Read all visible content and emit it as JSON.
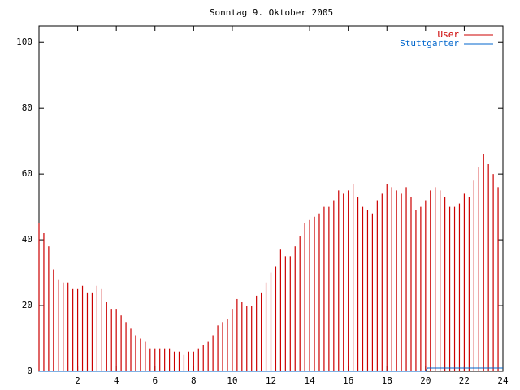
{
  "chart_data": {
    "type": "impulse",
    "title": "Sonntag 9. Oktober 2005",
    "xlim": [
      0,
      24
    ],
    "xticks": [
      2,
      4,
      6,
      8,
      10,
      12,
      14,
      16,
      18,
      20,
      22,
      24
    ],
    "ylim": [
      0,
      105
    ],
    "yticks": [
      0,
      20,
      40,
      60,
      80,
      100
    ],
    "legend": "top-right",
    "series": [
      {
        "name": "User",
        "color": "#cc0000",
        "style": "impulses",
        "x": [
          0,
          0.25,
          0.5,
          0.75,
          1,
          1.25,
          1.5,
          1.75,
          2,
          2.25,
          2.5,
          2.75,
          3,
          3.25,
          3.5,
          3.75,
          4,
          4.25,
          4.5,
          4.75,
          5,
          5.25,
          5.5,
          5.75,
          6,
          6.25,
          6.5,
          6.75,
          7,
          7.25,
          7.5,
          7.75,
          8,
          8.25,
          8.5,
          8.75,
          9,
          9.25,
          9.5,
          9.75,
          10,
          10.25,
          10.5,
          10.75,
          11,
          11.25,
          11.5,
          11.75,
          12,
          12.25,
          12.5,
          12.75,
          13,
          13.25,
          13.5,
          13.75,
          14,
          14.25,
          14.5,
          14.75,
          15,
          15.25,
          15.5,
          15.75,
          16,
          16.25,
          16.5,
          16.75,
          17,
          17.25,
          17.5,
          17.75,
          18,
          18.25,
          18.5,
          18.75,
          19,
          19.25,
          19.5,
          19.75,
          20,
          20.25,
          20.5,
          20.75,
          21,
          21.25,
          21.5,
          21.75,
          22,
          22.25,
          22.5,
          22.75,
          23,
          23.25,
          23.5,
          23.75
        ],
        "values": [
          45,
          42,
          38,
          31,
          28,
          27,
          27,
          25,
          25,
          26,
          24,
          24,
          26,
          25,
          21,
          19,
          19,
          17,
          15,
          13,
          11,
          10,
          9,
          7,
          7,
          7,
          7,
          7,
          6,
          6,
          5,
          6,
          6,
          7,
          8,
          9,
          11,
          14,
          15,
          16,
          19,
          22,
          21,
          20,
          20,
          23,
          24,
          27,
          30,
          32,
          37,
          35,
          35,
          38,
          41,
          45,
          46,
          47,
          48,
          50,
          50,
          52,
          55,
          54,
          55,
          57,
          53,
          50,
          49,
          48,
          52,
          54,
          57,
          56,
          55,
          54,
          56,
          53,
          49,
          50,
          52,
          55,
          56,
          55,
          53,
          50,
          50,
          51,
          54,
          53,
          58,
          62,
          66,
          63,
          60,
          56
        ]
      },
      {
        "name": "Stuttgarter",
        "color": "#0066cc",
        "style": "lines",
        "x": [
          0,
          20,
          20.1,
          24
        ],
        "values": [
          0,
          0,
          1,
          1
        ]
      }
    ]
  }
}
